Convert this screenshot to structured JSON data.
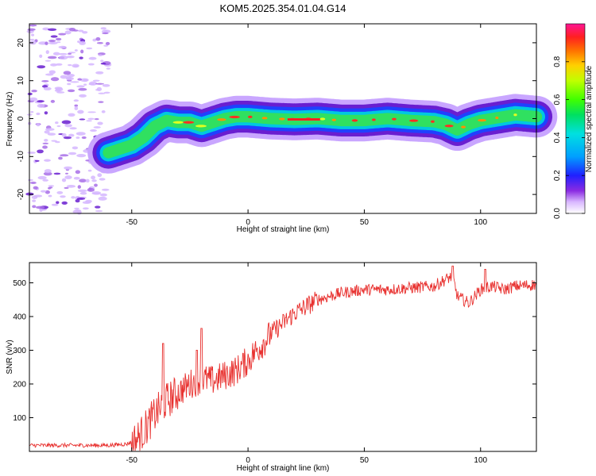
{
  "title": "KOM5.2025.354.01.04.G14",
  "chart_data": [
    {
      "type": "heatmap",
      "xlabel": "Height of straight line (km)",
      "ylabel": "Frequency (Hz)",
      "xlim": [
        -94,
        124
      ],
      "ylim": [
        -25,
        25
      ],
      "x_ticks": [
        -50,
        0,
        50,
        100
      ],
      "y_ticks": [
        -20,
        -10,
        0,
        10,
        20
      ],
      "colorbar": {
        "label": "Normalized spectral amplitude",
        "range": [
          0,
          1
        ],
        "ticks": [
          "0.0",
          "0.2",
          "0.4",
          "0.6",
          "0.8"
        ]
      },
      "ridge": {
        "x": [
          -60,
          -55,
          -50,
          -45,
          -40,
          -35,
          -30,
          -25,
          -20,
          -15,
          -10,
          -5,
          0,
          10,
          20,
          30,
          40,
          50,
          60,
          70,
          80,
          85,
          90,
          95,
          100,
          110,
          115,
          124
        ],
        "freq": [
          -9,
          -8,
          -7,
          -5,
          -2,
          -0.5,
          -1,
          -1,
          -2,
          -1,
          0,
          0.5,
          0.5,
          0,
          -0.2,
          0,
          -0.5,
          -0.5,
          0,
          -0.5,
          -0.8,
          -1.5,
          -3,
          -1.5,
          -0.5,
          0.5,
          1,
          0.5
        ]
      },
      "noise_region_x": [
        -94,
        -60
      ]
    },
    {
      "type": "line",
      "xlabel": "Height of straight line (km)",
      "ylabel": "SNR (v/v)",
      "xlim": [
        -94,
        124
      ],
      "ylim": [
        0,
        560
      ],
      "x_ticks": [
        -50,
        0,
        50,
        100
      ],
      "y_ticks": [
        100,
        200,
        300,
        400,
        500
      ],
      "color": "#e8312f",
      "trend": {
        "x": [
          -94,
          -60,
          -52,
          -48,
          -45,
          -40,
          -35,
          -30,
          -25,
          -20,
          -15,
          -10,
          -5,
          0,
          5,
          10,
          15,
          20,
          25,
          30,
          40,
          50,
          60,
          70,
          80,
          85,
          88,
          90,
          95,
          100,
          105,
          110,
          115,
          124
        ],
        "y": [
          18,
          18,
          22,
          35,
          60,
          110,
          150,
          175,
          200,
          215,
          210,
          225,
          240,
          270,
          310,
          350,
          380,
          410,
          430,
          450,
          470,
          480,
          480,
          485,
          490,
          510,
          520,
          460,
          440,
          480,
          490,
          480,
          490,
          495
        ]
      },
      "spikes": [
        {
          "x": -36.5,
          "y": 320
        },
        {
          "x": -20,
          "y": 365
        },
        {
          "x": -22,
          "y": 300
        },
        {
          "x": 88,
          "y": 550
        },
        {
          "x": 102,
          "y": 540
        }
      ]
    }
  ]
}
